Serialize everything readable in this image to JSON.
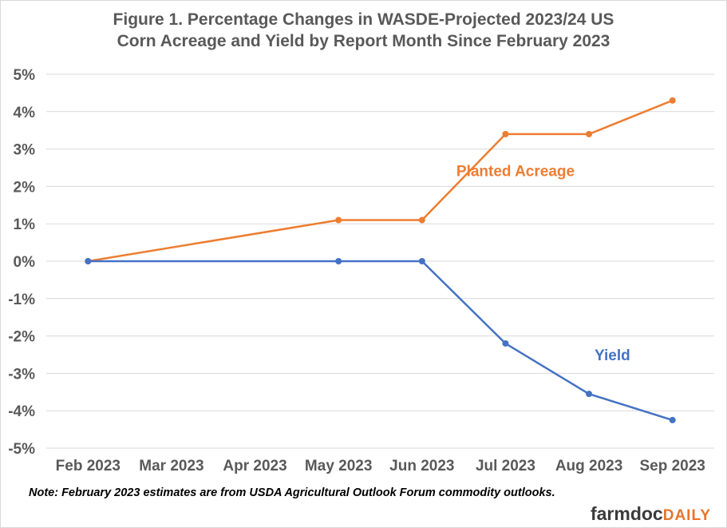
{
  "figure": {
    "title_line1": "Figure 1. Percentage Changes in WASDE-Projected 2023/24 US",
    "title_line2": "Corn Acreage and Yield by Report Month Since February 2023",
    "note": "Note: February 2023 estimates are from USDA Agricultural Outlook Forum commodity outlooks.",
    "brand_part1": "farmdoc",
    "brand_part2": "DAILY"
  },
  "chart_data": {
    "type": "line",
    "categories": [
      "Feb 2023",
      "Mar 2023",
      "Apr 2023",
      "May 2023",
      "Jun 2023",
      "Jul 2023",
      "Aug 2023",
      "Sep 2023"
    ],
    "ylim": [
      -5,
      5
    ],
    "yticks": [
      5,
      4,
      3,
      2,
      1,
      0,
      -1,
      -2,
      -3,
      -4,
      -5
    ],
    "ytick_labels": [
      "5%",
      "4%",
      "3%",
      "2%",
      "1%",
      "0%",
      "-1%",
      "-2%",
      "-3%",
      "-4%",
      "-5%"
    ],
    "grid": true,
    "series": [
      {
        "name": "Planted Acreage",
        "color": "#ed7d31",
        "points": [
          [
            0,
            0.0
          ],
          [
            3,
            1.1
          ],
          [
            4,
            1.1
          ],
          [
            5,
            3.4
          ],
          [
            6,
            3.4
          ],
          [
            7,
            4.3
          ]
        ],
        "label_at": [
          5.12,
          2.28
        ]
      },
      {
        "name": "Yield",
        "color": "#4472c4",
        "points": [
          [
            0,
            0.0
          ],
          [
            3,
            0.0
          ],
          [
            4,
            0.0
          ],
          [
            5,
            -2.2
          ],
          [
            6,
            -3.55
          ],
          [
            7,
            -4.25
          ]
        ],
        "label_at": [
          6.28,
          -2.65
        ]
      }
    ]
  }
}
